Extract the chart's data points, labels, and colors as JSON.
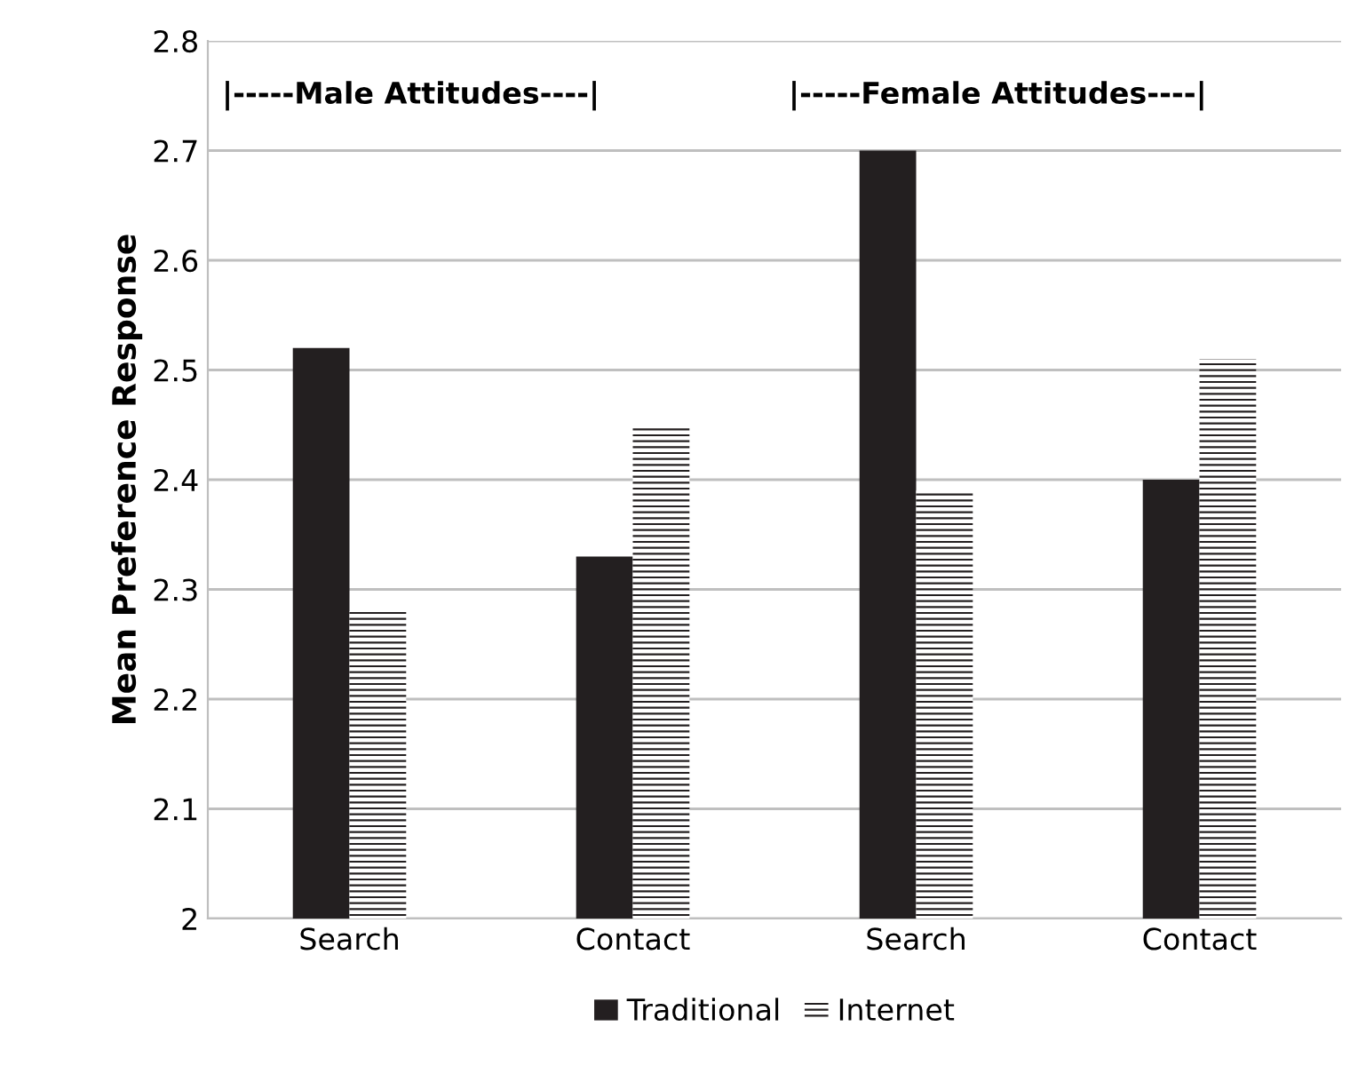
{
  "chart_data": {
    "type": "bar",
    "ylabel": "Mean Preference Response",
    "categories": [
      "Search",
      "Contact",
      "Search",
      "Contact"
    ],
    "series": [
      {
        "name": "Traditional",
        "color": "#231f20",
        "values": [
          2.52,
          2.33,
          2.7,
          2.4
        ]
      },
      {
        "name": "Internet",
        "color": "#231f20",
        "values": [
          2.28,
          2.45,
          2.39,
          2.51
        ]
      }
    ],
    "ylim": [
      2,
      2.8
    ],
    "yticks": [
      2,
      2.1,
      2.2,
      2.3,
      2.4,
      2.5,
      2.6,
      2.7,
      2.8
    ],
    "grid": "y",
    "legend": "bottom",
    "annotations": [
      "|-----Male Attitudes----|",
      "|-----Female Attitudes----|"
    ]
  }
}
